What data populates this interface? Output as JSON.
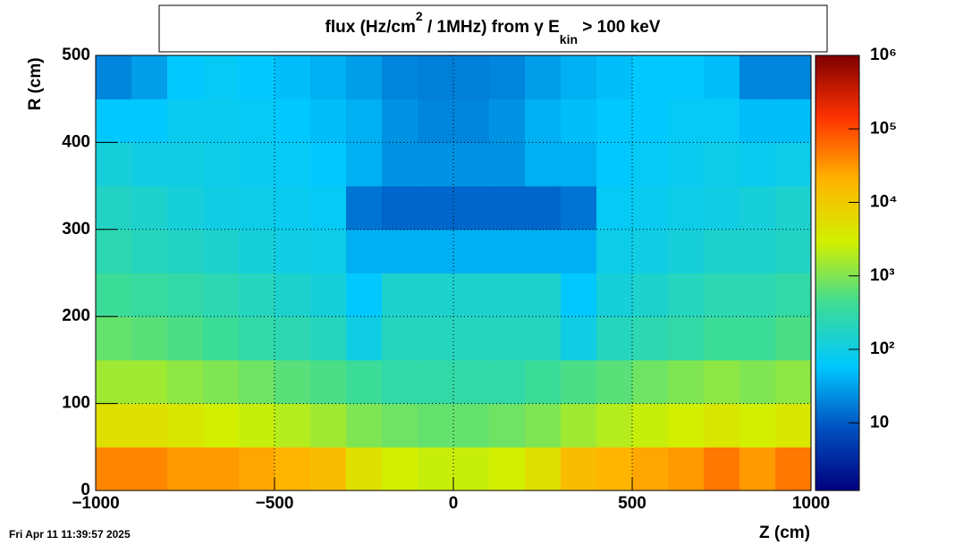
{
  "chart_data": {
    "type": "heatmap",
    "title": [
      "flux (Hz/cm",
      "2",
      " / 1MHz) from ",
      "γ",
      " E",
      "kin",
      " > 100 keV"
    ],
    "xlabel": "Z (cm)",
    "ylabel": "R (cm)",
    "footer": "Fri Apr 11 11:39:57 2025",
    "x_edges": [
      -1000,
      -900,
      -800,
      -700,
      -600,
      -500,
      -400,
      -300,
      -200,
      -100,
      0,
      100,
      200,
      300,
      400,
      500,
      600,
      700,
      800,
      900,
      1000
    ],
    "y_edges": [
      0,
      50,
      100,
      150,
      200,
      250,
      300,
      350,
      400,
      450,
      500
    ],
    "z": [
      [
        40000,
        40000,
        30000,
        30000,
        25000,
        20000,
        15000,
        5000,
        3000,
        2500,
        2500,
        3000,
        5000,
        15000,
        20000,
        25000,
        30000,
        50000,
        30000,
        50000
      ],
      [
        5000,
        5000,
        4000,
        3000,
        2500,
        2000,
        1500,
        1000,
        800,
        700,
        700,
        800,
        1000,
        1500,
        2000,
        2500,
        3000,
        4000,
        3000,
        4000
      ],
      [
        1500,
        1500,
        1200,
        1000,
        800,
        600,
        500,
        400,
        300,
        300,
        300,
        300,
        400,
        500,
        600,
        800,
        1000,
        1200,
        1000,
        1200
      ],
      [
        700,
        600,
        500,
        400,
        300,
        250,
        200,
        100,
        200,
        200,
        200,
        200,
        200,
        100,
        200,
        250,
        300,
        400,
        400,
        500
      ],
      [
        400,
        350,
        300,
        250,
        200,
        150,
        120,
        60,
        150,
        150,
        150,
        150,
        150,
        60,
        120,
        150,
        200,
        250,
        250,
        300
      ],
      [
        250,
        200,
        180,
        150,
        120,
        100,
        90,
        40,
        40,
        40,
        40,
        40,
        40,
        40,
        90,
        100,
        120,
        150,
        150,
        180
      ],
      [
        180,
        150,
        120,
        100,
        90,
        80,
        70,
        15,
        12,
        12,
        12,
        12,
        12,
        15,
        70,
        80,
        90,
        100,
        120,
        150
      ],
      [
        120,
        100,
        100,
        90,
        80,
        70,
        60,
        40,
        25,
        25,
        25,
        25,
        40,
        40,
        60,
        70,
        80,
        90,
        80,
        90
      ],
      [
        60,
        60,
        80,
        80,
        70,
        60,
        50,
        40,
        25,
        20,
        20,
        25,
        40,
        50,
        60,
        60,
        70,
        70,
        50,
        50
      ],
      [
        20,
        30,
        60,
        70,
        60,
        50,
        40,
        30,
        20,
        18,
        18,
        20,
        30,
        40,
        50,
        60,
        60,
        50,
        20,
        20
      ]
    ],
    "xlim": [
      -1000,
      1000
    ],
    "ylim": [
      0,
      500
    ],
    "xticks": [
      {
        "value": -1000,
        "label": "−1000"
      },
      {
        "value": -500,
        "label": "−500"
      },
      0,
      500,
      1000
    ],
    "yticks": [
      0,
      100,
      200,
      300,
      400,
      500
    ],
    "zlim": [
      1.2,
      1000000
    ],
    "zlog": true,
    "zticks": [
      {
        "value": 10,
        "label": "10"
      },
      {
        "value": 100,
        "label": "10²"
      },
      {
        "value": 1000,
        "label": "10³"
      },
      {
        "value": 10000,
        "label": "10⁴"
      },
      {
        "value": 100000,
        "label": "10⁵"
      },
      {
        "value": 1000000,
        "label": "10⁶"
      }
    ],
    "colormap": [
      "#00007f",
      "#0050c0",
      "#00c8ff",
      "#3cdc96",
      "#d2f000",
      "#ffb400",
      "#ff3200",
      "#7f0000"
    ],
    "grid": true
  }
}
